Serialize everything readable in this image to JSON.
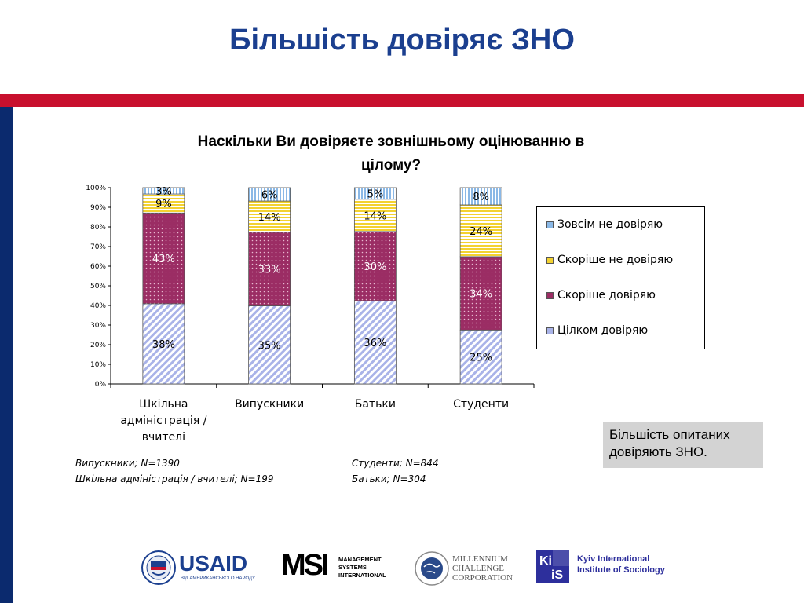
{
  "slide": {
    "title": "Більшість довіряє ЗНО"
  },
  "chart_data": {
    "type": "bar",
    "stacked": true,
    "percent": true,
    "title": "Наскільки Ви довіряєте зовнішньому оцінюванню в цілому?",
    "title_lines": [
      "Наскільки Ви довіряєте зовнішньому оцінюванню в",
      "цілому?"
    ],
    "categories": [
      [
        "Шкільна",
        "адміністрація /",
        "вчителі"
      ],
      [
        "Випускники"
      ],
      [
        "Батьки"
      ],
      [
        "Студенти"
      ]
    ],
    "ylim": [
      0,
      100
    ],
    "yticks": [
      "0%",
      "10%",
      "20%",
      "30%",
      "40%",
      "50%",
      "60%",
      "70%",
      "80%",
      "90%",
      "100%"
    ],
    "series": [
      {
        "name": "Цілком довіряю",
        "values": [
          38,
          35,
          36,
          25
        ],
        "labels": [
          "38%",
          "35%",
          "36%",
          "25%"
        ],
        "color": "#a9b3e8",
        "pattern": "diagonal"
      },
      {
        "name": "Скоріше довіряю",
        "values": [
          43,
          33,
          30,
          34
        ],
        "labels": [
          "43%",
          "33%",
          "30%",
          "34%"
        ],
        "color": "#9b2d64",
        "pattern": "dots"
      },
      {
        "name": "Скоріше не довіряю",
        "values": [
          9,
          14,
          14,
          24
        ],
        "labels": [
          "9%",
          "14%",
          "14%",
          "24%"
        ],
        "color": "#f3d230",
        "pattern": "horizontal"
      },
      {
        "name": "Зовсім не довіряю",
        "values": [
          3,
          6,
          5,
          8
        ],
        "labels": [
          "3%",
          "6%",
          "5%",
          "8%"
        ],
        "color": "#8ab8e6",
        "pattern": "vertical"
      }
    ],
    "legend_position": "right",
    "legend_order": [
      "Зовсім не довіряю",
      "Скоріше не довіряю",
      "Скоріше довіряю",
      "Цілком довіряю"
    ],
    "grid": false
  },
  "note": {
    "lines": [
      "Більшість опитаних",
      "довіряють ЗНО."
    ]
  },
  "footnotes": {
    "graduates": "Випускники; N=1390",
    "school": "Шкільна адміністрація / вчителі; N=199",
    "students": "Студенти; N=844",
    "parents": "Батьки; N=304"
  },
  "logos": {
    "usaid": {
      "name": "USAID",
      "tagline": "ВІД АМЕРИКАНСЬКОГО НАРОДУ"
    },
    "msi": {
      "mark": "MSI",
      "lines": [
        "MANAGEMENT",
        "SYSTEMS",
        "INTERNATIONAL"
      ]
    },
    "mcc": {
      "lines": [
        "MILLENNIUM",
        "CHALLENGE",
        "CORPORATION"
      ]
    },
    "kiis": {
      "mark": "KIIS",
      "lines": [
        "Kyiv International",
        "Institute of Sociology"
      ]
    }
  }
}
